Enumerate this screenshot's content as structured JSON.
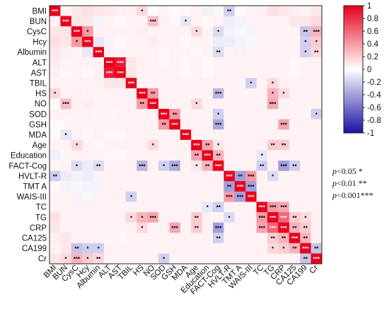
{
  "chart_data": {
    "type": "heatmap",
    "title": "",
    "xlabel": "",
    "ylabel": "",
    "grid": true,
    "variables": [
      "BMI",
      "BUN",
      "CysC",
      "Hcy",
      "Albumin",
      "ALT",
      "AST",
      "TBIL",
      "HS",
      "NO",
      "SOD",
      "GSH",
      "MDA",
      "Age",
      "Education",
      "FACT-Cog",
      "HVLT-R",
      "TMT A",
      "WAIS-III",
      "TC",
      "TG",
      "CRP",
      "CA125",
      "CA199",
      "Cr"
    ],
    "matrix": [
      [
        1.0,
        0.05,
        0.1,
        0.12,
        0.1,
        0.08,
        0.06,
        0.05,
        0.15,
        0.02,
        0.05,
        0.02,
        0.03,
        0.05,
        -0.06,
        0.04,
        -0.2,
        0.03,
        0.05,
        0.05,
        0.12,
        0.1,
        0.06,
        0.05,
        0.1
      ],
      [
        0.05,
        1.0,
        0.1,
        0.1,
        -0.05,
        0.05,
        0.03,
        0.05,
        0.05,
        0.25,
        0.05,
        0.03,
        -0.1,
        0.05,
        0.03,
        0.05,
        -0.08,
        -0.05,
        0.05,
        0.05,
        0.05,
        0.05,
        0.1,
        0.1,
        0.15
      ],
      [
        0.1,
        0.1,
        1.0,
        0.4,
        0.05,
        0.05,
        0.05,
        0.05,
        0.06,
        0.05,
        0.05,
        0.05,
        0.05,
        0.15,
        0.05,
        -0.15,
        -0.05,
        -0.03,
        -0.05,
        0.05,
        0.05,
        0.05,
        0.05,
        -0.25,
        0.3
      ],
      [
        0.12,
        0.1,
        0.4,
        1.0,
        -0.1,
        0.05,
        0.03,
        0.05,
        0.05,
        0.08,
        0.05,
        0.05,
        0.03,
        0.05,
        0.05,
        -0.08,
        -0.08,
        -0.05,
        -0.03,
        0.05,
        0.05,
        0.05,
        0.05,
        -0.2,
        0.2
      ],
      [
        0.1,
        -0.05,
        0.05,
        -0.1,
        1.0,
        0.05,
        0.05,
        0.05,
        0.05,
        0.05,
        0.03,
        0.05,
        0.05,
        0.03,
        0.05,
        -0.15,
        0.05,
        -0.05,
        0.05,
        0.05,
        0.05,
        0.05,
        0.05,
        -0.2,
        0.15
      ],
      [
        0.08,
        0.05,
        0.05,
        0.05,
        0.05,
        1.0,
        0.9,
        0.1,
        0.05,
        0.05,
        0.03,
        0.05,
        0.03,
        0.05,
        0.03,
        0.05,
        0.05,
        0.05,
        0.05,
        0.05,
        0.05,
        0.05,
        0.03,
        0.05,
        0.05
      ],
      [
        0.06,
        0.03,
        0.05,
        0.03,
        0.05,
        0.9,
        1.0,
        0.1,
        0.05,
        0.05,
        0.05,
        0.05,
        0.03,
        0.05,
        0.03,
        0.05,
        0.05,
        0.05,
        0.05,
        0.05,
        0.05,
        0.05,
        0.03,
        0.05,
        0.05
      ],
      [
        0.05,
        0.05,
        0.05,
        0.05,
        0.05,
        0.1,
        0.1,
        1.0,
        0.05,
        0.05,
        0.05,
        0.05,
        0.05,
        0.05,
        0.05,
        0.05,
        0.05,
        0.05,
        -0.2,
        0.05,
        0.15,
        0.05,
        0.05,
        0.05,
        0.05
      ],
      [
        0.15,
        0.05,
        0.06,
        0.05,
        0.05,
        0.05,
        0.05,
        0.05,
        1.0,
        0.4,
        0.05,
        0.05,
        0.05,
        0.05,
        0.05,
        -0.3,
        0.05,
        0.05,
        0.05,
        0.05,
        0.3,
        0.15,
        0.05,
        0.05,
        0.05
      ],
      [
        0.02,
        0.25,
        0.05,
        0.08,
        0.05,
        0.05,
        0.05,
        0.05,
        0.4,
        1.0,
        0.05,
        0.05,
        0.05,
        0.15,
        0.05,
        0.05,
        0.05,
        0.05,
        0.05,
        0.05,
        0.35,
        0.05,
        0.05,
        0.05,
        0.05
      ],
      [
        0.05,
        0.05,
        0.05,
        0.05,
        0.03,
        0.03,
        0.05,
        0.05,
        0.05,
        0.05,
        1.0,
        0.4,
        0.05,
        0.05,
        0.05,
        -0.2,
        0.05,
        0.05,
        0.05,
        0.05,
        0.05,
        0.05,
        0.05,
        0.05,
        -0.2
      ],
      [
        0.02,
        0.03,
        0.05,
        0.05,
        0.05,
        0.05,
        0.05,
        0.05,
        0.05,
        0.05,
        0.4,
        1.0,
        0.05,
        0.05,
        0.05,
        -0.35,
        0.05,
        0.05,
        0.05,
        0.05,
        0.05,
        0.35,
        0.05,
        0.05,
        0.05
      ],
      [
        0.03,
        -0.1,
        0.05,
        0.03,
        0.05,
        0.03,
        0.03,
        0.05,
        0.05,
        0.05,
        0.05,
        0.05,
        1.0,
        0.05,
        0.05,
        0.05,
        0.05,
        0.05,
        0.05,
        0.05,
        0.05,
        0.05,
        0.05,
        0.05,
        0.05
      ],
      [
        0.05,
        0.05,
        0.15,
        0.05,
        0.03,
        0.05,
        0.05,
        0.05,
        0.05,
        0.15,
        0.05,
        0.05,
        0.05,
        1.0,
        0.35,
        0.1,
        0.05,
        0.05,
        0.05,
        0.05,
        0.2,
        0.2,
        0.05,
        0.05,
        0.05
      ],
      [
        -0.06,
        0.03,
        0.05,
        0.05,
        0.05,
        0.03,
        0.03,
        0.05,
        0.05,
        0.05,
        0.05,
        0.05,
        0.05,
        0.35,
        1.0,
        0.3,
        0.05,
        0.05,
        0.05,
        -0.1,
        0.05,
        0.05,
        0.05,
        0.05,
        0.05
      ],
      [
        0.04,
        0.05,
        -0.15,
        -0.08,
        -0.15,
        0.05,
        0.05,
        0.05,
        -0.3,
        0.05,
        -0.2,
        -0.35,
        0.05,
        0.1,
        0.3,
        1.0,
        0.05,
        0.05,
        0.05,
        -0.2,
        0.05,
        -0.4,
        -0.2,
        0.05,
        0.05
      ],
      [
        -0.2,
        -0.08,
        -0.05,
        -0.08,
        0.05,
        0.05,
        0.05,
        0.05,
        0.05,
        0.05,
        0.05,
        0.05,
        0.05,
        0.05,
        0.05,
        0.05,
        1.0,
        -0.4,
        0.4,
        0.05,
        -0.15,
        0.05,
        0.05,
        0.05,
        0.05
      ],
      [
        0.03,
        -0.05,
        -0.03,
        -0.05,
        -0.05,
        0.05,
        0.05,
        0.05,
        0.05,
        0.05,
        0.05,
        0.05,
        0.05,
        0.05,
        0.05,
        0.05,
        -0.4,
        1.0,
        -0.4,
        0.05,
        0.05,
        0.05,
        0.05,
        0.05,
        0.05
      ],
      [
        0.05,
        0.05,
        -0.05,
        -0.03,
        0.05,
        0.05,
        0.05,
        -0.2,
        0.05,
        0.05,
        0.05,
        0.05,
        0.05,
        0.05,
        0.05,
        0.05,
        0.4,
        -0.4,
        1.0,
        0.05,
        0.05,
        0.05,
        0.05,
        0.05,
        0.05
      ],
      [
        0.05,
        0.05,
        0.05,
        0.05,
        0.05,
        0.05,
        0.05,
        0.05,
        0.05,
        0.05,
        0.05,
        0.05,
        0.05,
        0.05,
        -0.1,
        -0.2,
        0.05,
        0.05,
        0.05,
        1.0,
        0.4,
        0.35,
        0.05,
        0.05,
        0.05
      ],
      [
        0.12,
        0.05,
        0.05,
        0.05,
        0.05,
        0.05,
        0.05,
        0.15,
        0.3,
        0.35,
        0.05,
        0.05,
        0.05,
        0.2,
        0.05,
        0.05,
        -0.15,
        0.05,
        0.05,
        0.4,
        1.0,
        0.6,
        0.2,
        0.15,
        0.05
      ],
      [
        0.1,
        0.05,
        0.05,
        0.05,
        0.05,
        0.05,
        0.05,
        0.05,
        0.15,
        0.05,
        0.05,
        0.35,
        0.05,
        0.2,
        0.05,
        -0.4,
        0.05,
        0.05,
        0.05,
        0.35,
        0.6,
        1.0,
        0.3,
        0.2,
        0.05
      ],
      [
        0.06,
        0.1,
        0.05,
        0.05,
        0.05,
        0.03,
        0.03,
        0.05,
        0.05,
        0.05,
        0.05,
        0.05,
        0.05,
        0.05,
        0.05,
        -0.2,
        0.05,
        0.05,
        0.05,
        0.05,
        0.2,
        0.3,
        1.0,
        0.3,
        0.05
      ],
      [
        0.05,
        0.1,
        -0.25,
        -0.2,
        -0.2,
        0.05,
        0.05,
        0.05,
        0.05,
        0.05,
        0.05,
        0.05,
        0.05,
        0.05,
        0.05,
        0.05,
        0.05,
        0.05,
        0.05,
        0.05,
        0.15,
        0.2,
        0.3,
        1.0,
        -0.25
      ],
      [
        0.1,
        0.15,
        0.3,
        0.2,
        0.15,
        0.05,
        0.05,
        0.05,
        0.05,
        0.05,
        -0.2,
        0.05,
        0.05,
        0.05,
        0.05,
        0.05,
        0.05,
        0.05,
        0.05,
        0.05,
        0.05,
        0.05,
        0.05,
        -0.25,
        1.0
      ]
    ],
    "significance": [
      [
        "***",
        "",
        "",
        "",
        "",
        "",
        "",
        "",
        "*",
        "",
        "",
        "",
        "",
        "",
        "",
        "",
        "**",
        "",
        "",
        "",
        "",
        "",
        "",
        "",
        ""
      ],
      [
        "",
        "***",
        "",
        "",
        "",
        "",
        "",
        "",
        "",
        "***",
        "",
        "",
        "*",
        "",
        "",
        "",
        "",
        "",
        "",
        "",
        "",
        "",
        "",
        "",
        ""
      ],
      [
        "",
        "",
        "***",
        "*",
        "",
        "",
        "",
        "",
        "",
        "",
        "",
        "",
        "",
        "*",
        "",
        "*",
        "",
        "",
        "",
        "",
        "",
        "",
        "",
        "**",
        "***"
      ],
      [
        "",
        "",
        "*",
        "***",
        "",
        "",
        "",
        "",
        "",
        "",
        "",
        "",
        "",
        "",
        "",
        "",
        "",
        "",
        "",
        "",
        "",
        "",
        "",
        "*",
        "*"
      ],
      [
        "",
        "",
        "",
        "",
        "***",
        "",
        "",
        "",
        "",
        "",
        "",
        "",
        "",
        "",
        "",
        "**",
        "",
        "",
        "",
        "",
        "",
        "",
        "",
        "*",
        "**"
      ],
      [
        "",
        "",
        "",
        "",
        "",
        "***",
        "***",
        "",
        "",
        "",
        "",
        "",
        "",
        "",
        "",
        "",
        "",
        "",
        "",
        "",
        "",
        "",
        "",
        "",
        ""
      ],
      [
        "",
        "",
        "",
        "",
        "",
        "***",
        "***",
        "",
        "",
        "",
        "",
        "",
        "",
        "",
        "",
        "",
        "",
        "",
        "",
        "",
        "",
        "",
        "",
        "",
        ""
      ],
      [
        "",
        "",
        "",
        "",
        "",
        "",
        "",
        "***",
        "",
        "",
        "",
        "",
        "",
        "",
        "",
        "",
        "",
        "",
        "*",
        "",
        "*",
        "",
        "",
        "",
        ""
      ],
      [
        "*",
        "",
        "",
        "",
        "",
        "",
        "",
        "",
        "***",
        "**",
        "",
        "",
        "",
        "",
        "",
        "***",
        "",
        "",
        "",
        "",
        "*",
        "*",
        "",
        "",
        ""
      ],
      [
        "",
        "***",
        "",
        "",
        "",
        "",
        "",
        "",
        "**",
        "***",
        "",
        "",
        "",
        "*",
        "",
        "",
        "",
        "",
        "",
        "",
        "***",
        "",
        "",
        "",
        ""
      ],
      [
        "",
        "",
        "",
        "",
        "",
        "",
        "",
        "",
        "",
        "",
        "***",
        "**",
        "",
        "",
        "",
        "*",
        "",
        "",
        "",
        "",
        "",
        "",
        "",
        "",
        "*"
      ],
      [
        "",
        "",
        "",
        "",
        "",
        "",
        "",
        "",
        "",
        "",
        "**",
        "***",
        "",
        "",
        "",
        "***",
        "",
        "",
        "",
        "",
        "",
        "***",
        "",
        "",
        ""
      ],
      [
        "",
        "*",
        "",
        "",
        "",
        "",
        "",
        "",
        "",
        "",
        "",
        "",
        "***",
        "",
        "",
        "",
        "",
        "",
        "",
        "",
        "",
        "",
        "",
        "",
        ""
      ],
      [
        "",
        "",
        "*",
        "",
        "",
        "",
        "",
        "",
        "",
        "*",
        "",
        "",
        "",
        "***",
        "**",
        "*",
        "",
        "",
        "",
        "",
        "**",
        "**",
        "",
        "",
        ""
      ],
      [
        "",
        "",
        "",
        "",
        "",
        "",
        "",
        "",
        "",
        "",
        "",
        "",
        "",
        "**",
        "***",
        "**",
        "",
        "",
        "",
        "*",
        "",
        "",
        "",
        "",
        ""
      ],
      [
        "",
        "",
        "*",
        "",
        "**",
        "",
        "",
        "",
        "***",
        "",
        "*",
        "***",
        "",
        "*",
        "**",
        "***",
        "",
        "",
        "",
        "**",
        "",
        "***",
        "**",
        "",
        ""
      ],
      [
        "**",
        "",
        "",
        "",
        "",
        "",
        "",
        "",
        "",
        "",
        "",
        "",
        "",
        "",
        "",
        "",
        "***",
        "**",
        "***",
        "",
        "*",
        "",
        "",
        "",
        ""
      ],
      [
        "",
        "",
        "",
        "",
        "",
        "",
        "",
        "",
        "",
        "",
        "",
        "",
        "",
        "",
        "",
        "",
        "**",
        "***",
        "***",
        "",
        "",
        "",
        "",
        "",
        ""
      ],
      [
        "",
        "",
        "",
        "",
        "",
        "",
        "",
        "*",
        "",
        "",
        "",
        "",
        "",
        "",
        "",
        "",
        "***",
        "***",
        "***",
        "",
        "",
        "",
        "",
        "",
        ""
      ],
      [
        "",
        "",
        "",
        "",
        "",
        "",
        "",
        "",
        "",
        "",
        "",
        "",
        "",
        "",
        "*",
        "**",
        "",
        "",
        "",
        "***",
        "***",
        "***",
        "",
        "",
        ""
      ],
      [
        "",
        "",
        "",
        "",
        "",
        "",
        "",
        "*",
        "*",
        "***",
        "",
        "",
        "",
        "**",
        "",
        "",
        "*",
        "",
        "",
        "***",
        "***",
        "***",
        "**",
        "*",
        ""
      ],
      [
        "",
        "",
        "",
        "",
        "",
        "",
        "",
        "",
        "*",
        "",
        "",
        "***",
        "",
        "**",
        "",
        "***",
        "",
        "",
        "",
        "***",
        "***",
        "***",
        "**",
        "**",
        ""
      ],
      [
        "",
        "",
        "",
        "",
        "",
        "",
        "",
        "",
        "",
        "",
        "",
        "",
        "",
        "",
        "",
        "**",
        "",
        "",
        "",
        "",
        "**",
        "**",
        "***",
        "**",
        ""
      ],
      [
        "",
        "",
        "**",
        "*",
        "*",
        "",
        "",
        "",
        "",
        "",
        "",
        "",
        "",
        "",
        "",
        "",
        "",
        "",
        "",
        "",
        "*",
        "*",
        "**",
        "***",
        "**"
      ],
      [
        "",
        "*",
        "***",
        "*",
        "**",
        "",
        "",
        "",
        "",
        "",
        "*",
        "",
        "",
        "",
        "",
        "",
        "",
        "",
        "",
        "",
        "",
        "",
        "",
        "**",
        "***"
      ]
    ],
    "colorbar": {
      "range": [
        -1,
        1
      ],
      "ticks": [
        "1",
        "0.8",
        "0.6",
        "0.4",
        "0.2",
        "0",
        "-0.2",
        "-0.4",
        "-0.6",
        "-0.8",
        "-1"
      ],
      "colors": {
        "high": "#e8001c",
        "mid": "#ffffff",
        "low": "#1a10a8"
      }
    },
    "significance_key": [
      {
        "p": "p",
        "text": "<0.05 *"
      },
      {
        "p": "p",
        "text": "<0.01 **"
      },
      {
        "p": "p",
        "text": "<0.001***"
      }
    ]
  }
}
